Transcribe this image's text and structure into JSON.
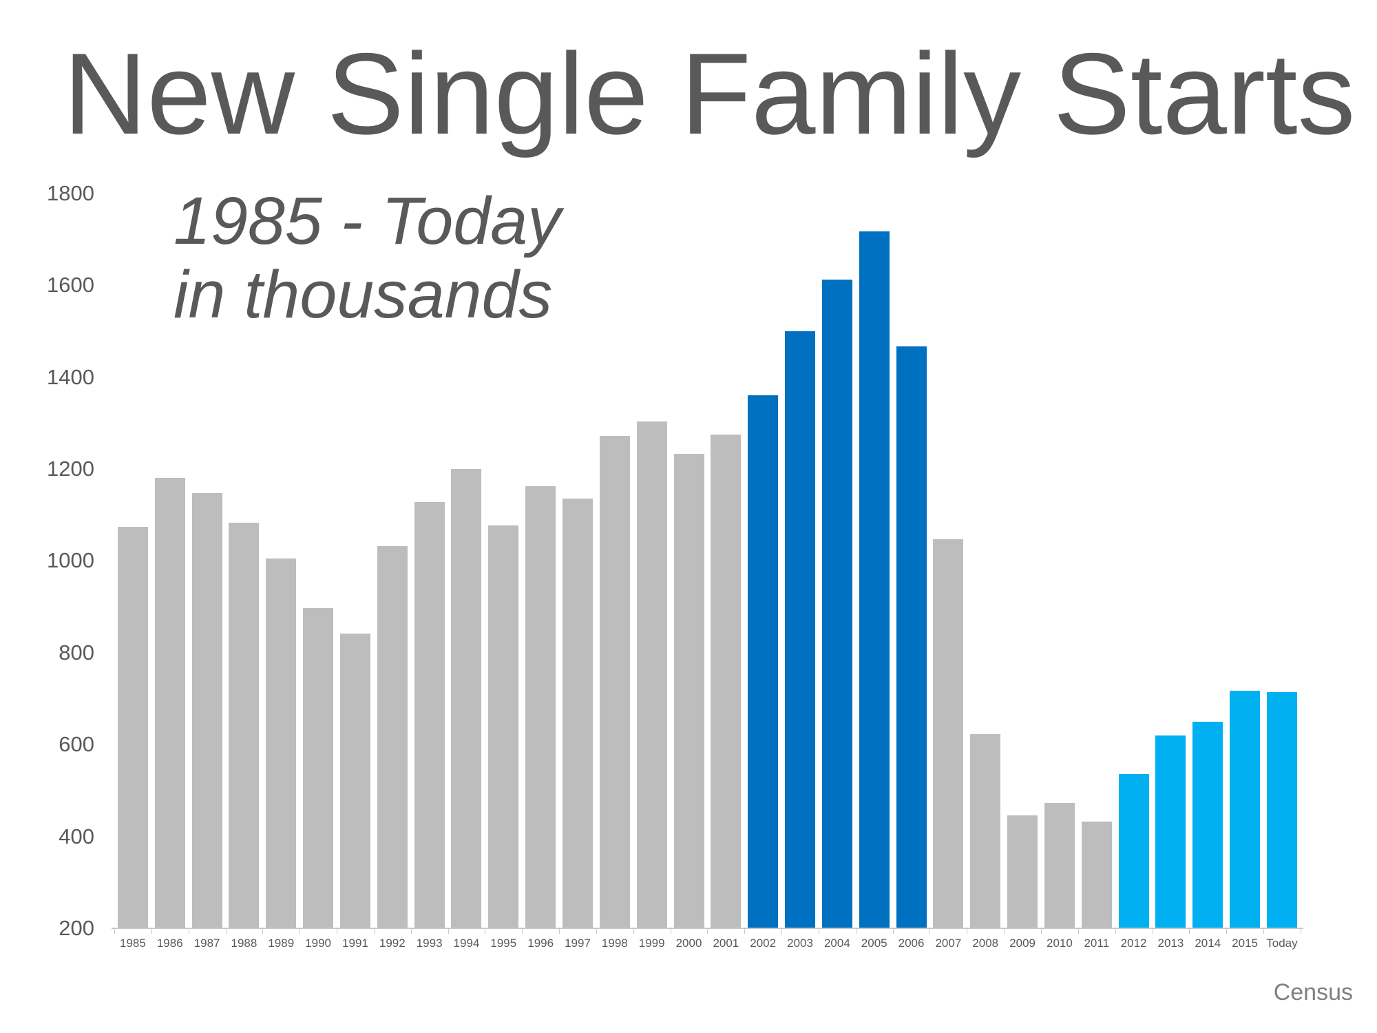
{
  "title": "New Single Family Starts",
  "subtitle": {
    "line1": "1985 - Today",
    "line2": "in thousands"
  },
  "source": "Census",
  "colors": {
    "bar_gray": "#bdbdbd",
    "bar_dark_blue": "#0070c0",
    "bar_light_blue": "#00b0f0",
    "title_text": "#595959",
    "axis_text": "#595959",
    "axis_line": "#c9c9c9",
    "source_text": "#808080"
  },
  "chart_data": {
    "type": "bar",
    "title": "New Single Family Starts",
    "subtitle": "1985 - Today in thousands",
    "units": "thousands of housing starts",
    "xlabel": "",
    "ylabel": "",
    "ylim": [
      200,
      1800
    ],
    "ytick_interval": 200,
    "yticks": [
      1800,
      1600,
      1400,
      1200,
      1000,
      800,
      600,
      400,
      200
    ],
    "grid": false,
    "legend": "none",
    "categories": [
      "1985",
      "1986",
      "1987",
      "1988",
      "1989",
      "1990",
      "1991",
      "1992",
      "1993",
      "1994",
      "1995",
      "1996",
      "1997",
      "1998",
      "1999",
      "2000",
      "2001",
      "2002",
      "2003",
      "2004",
      "2005",
      "2006",
      "2007",
      "2008",
      "2009",
      "2010",
      "2011",
      "2012",
      "2013",
      "2014",
      "2015",
      "Today"
    ],
    "values": [
      1072,
      1179,
      1146,
      1081,
      1003,
      895,
      840,
      1030,
      1126,
      1198,
      1076,
      1161,
      1134,
      1271,
      1302,
      1231,
      1273,
      1359,
      1499,
      1611,
      1716,
      1465,
      1046,
      622,
      445,
      471,
      431,
      535,
      618,
      648,
      715,
      712
    ],
    "bar_colors": [
      "#bdbdbd",
      "#bdbdbd",
      "#bdbdbd",
      "#bdbdbd",
      "#bdbdbd",
      "#bdbdbd",
      "#bdbdbd",
      "#bdbdbd",
      "#bdbdbd",
      "#bdbdbd",
      "#bdbdbd",
      "#bdbdbd",
      "#bdbdbd",
      "#bdbdbd",
      "#bdbdbd",
      "#bdbdbd",
      "#bdbdbd",
      "#0070c0",
      "#0070c0",
      "#0070c0",
      "#0070c0",
      "#0070c0",
      "#bdbdbd",
      "#bdbdbd",
      "#bdbdbd",
      "#bdbdbd",
      "#bdbdbd",
      "#00b0f0",
      "#00b0f0",
      "#00b0f0",
      "#00b0f0",
      "#00b0f0"
    ],
    "color_segments": [
      {
        "from": "1985",
        "to": "2001",
        "color": "#bdbdbd"
      },
      {
        "from": "2002",
        "to": "2006",
        "color": "#0070c0"
      },
      {
        "from": "2007",
        "to": "2011",
        "color": "#bdbdbd"
      },
      {
        "from": "2012",
        "to": "Today",
        "color": "#00b0f0"
      }
    ]
  }
}
